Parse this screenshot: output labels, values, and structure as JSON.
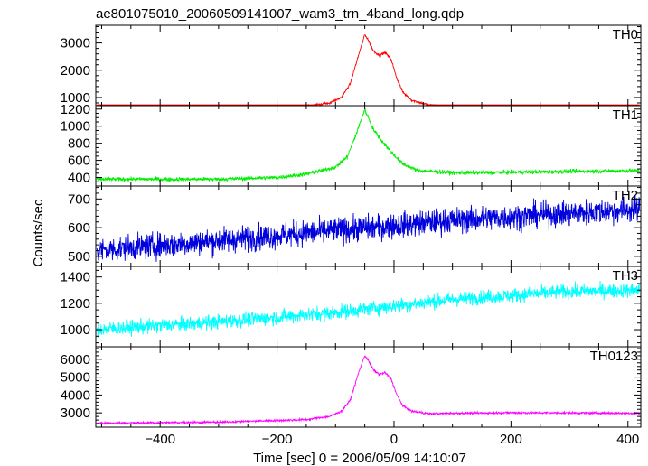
{
  "chart_data": {
    "type": "line",
    "title": "ae801075010_20060509141007_wam3_trn_4band_long.qdp",
    "xlabel": "Time [sec] 0 = 2006/05/09 14:10:07",
    "ylabel": "Counts/sec",
    "xlim": [
      -510,
      422
    ],
    "x_ticks": [
      -400,
      -200,
      0,
      200,
      400
    ],
    "x_tick_labels": [
      "−400",
      "−200",
      "0",
      "200",
      "400"
    ],
    "shared_x": true,
    "grid": false,
    "panels": [
      {
        "name": "TH0",
        "color": "#ff0000",
        "ylim": [
          700,
          3650
        ],
        "y_ticks": [
          1000,
          2000,
          3000
        ],
        "curve": [
          [
            -510,
            580
          ],
          [
            -300,
            620
          ],
          [
            -150,
            680
          ],
          [
            -110,
            800
          ],
          [
            -90,
            1000
          ],
          [
            -75,
            1500
          ],
          [
            -60,
            2600
          ],
          [
            -50,
            3300
          ],
          [
            -45,
            3150
          ],
          [
            -35,
            2700
          ],
          [
            -25,
            2550
          ],
          [
            -15,
            2650
          ],
          [
            -5,
            2400
          ],
          [
            5,
            1700
          ],
          [
            15,
            1200
          ],
          [
            30,
            900
          ],
          [
            60,
            720
          ],
          [
            100,
            680
          ],
          [
            200,
            660
          ],
          [
            300,
            640
          ],
          [
            422,
            620
          ]
        ],
        "noise": 40
      },
      {
        "name": "TH1",
        "color": "#00ee00",
        "ylim": [
          300,
          1240
        ],
        "y_ticks": [
          400,
          600,
          800,
          1000,
          1200
        ],
        "curve": [
          [
            -510,
            380
          ],
          [
            -300,
            380
          ],
          [
            -200,
            400
          ],
          [
            -150,
            440
          ],
          [
            -100,
            520
          ],
          [
            -80,
            640
          ],
          [
            -65,
            900
          ],
          [
            -55,
            1100
          ],
          [
            -50,
            1190
          ],
          [
            -45,
            1120
          ],
          [
            -35,
            960
          ],
          [
            -20,
            820
          ],
          [
            -5,
            700
          ],
          [
            15,
            560
          ],
          [
            40,
            480
          ],
          [
            100,
            455
          ],
          [
            200,
            460
          ],
          [
            300,
            470
          ],
          [
            422,
            480
          ]
        ],
        "noise": 22
      },
      {
        "name": "TH2",
        "color": "#0000dd",
        "ylim": [
          465,
          745
        ],
        "y_ticks": [
          500,
          600,
          700
        ],
        "curve": [
          [
            -510,
            520
          ],
          [
            -300,
            555
          ],
          [
            -100,
            590
          ],
          [
            100,
            625
          ],
          [
            300,
            650
          ],
          [
            422,
            665
          ]
        ],
        "noise": 42
      },
      {
        "name": "TH3",
        "color": "#00ffff",
        "ylim": [
          870,
          1480
        ],
        "y_ticks": [
          1000,
          1200,
          1400
        ],
        "curve": [
          [
            -510,
            1000
          ],
          [
            -300,
            1060
          ],
          [
            -100,
            1130
          ],
          [
            100,
            1230
          ],
          [
            300,
            1290
          ],
          [
            422,
            1300
          ]
        ],
        "noise": 52
      },
      {
        "name": "TH0123",
        "color": "#ff00ff",
        "ylim": [
          2200,
          6700
        ],
        "y_ticks": [
          3000,
          4000,
          5000,
          6000
        ],
        "curve": [
          [
            -510,
            2420
          ],
          [
            -300,
            2480
          ],
          [
            -150,
            2620
          ],
          [
            -110,
            2800
          ],
          [
            -90,
            3100
          ],
          [
            -75,
            3700
          ],
          [
            -60,
            5300
          ],
          [
            -50,
            6200
          ],
          [
            -45,
            6000
          ],
          [
            -35,
            5400
          ],
          [
            -25,
            5150
          ],
          [
            -15,
            5250
          ],
          [
            -5,
            4900
          ],
          [
            5,
            4000
          ],
          [
            15,
            3400
          ],
          [
            30,
            3100
          ],
          [
            60,
            2950
          ],
          [
            100,
            2980
          ],
          [
            200,
            3010
          ],
          [
            300,
            3000
          ],
          [
            422,
            2980
          ]
        ],
        "noise": 55
      }
    ]
  }
}
